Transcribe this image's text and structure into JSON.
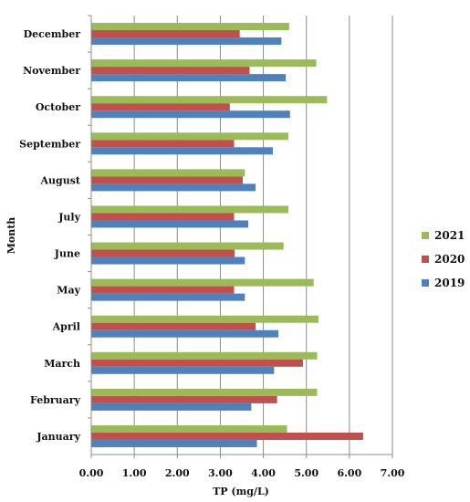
{
  "chart_data": {
    "type": "bar",
    "orientation": "horizontal",
    "title": "",
    "xlabel": "TP (mg/L)",
    "ylabel": "Month",
    "xlim": [
      0,
      7
    ],
    "x_ticks": [
      "0.00",
      "1.00",
      "2.00",
      "3.00",
      "4.00",
      "5.00",
      "6.00",
      "7.00"
    ],
    "grid": "vertical major gridlines",
    "legend_position": "right",
    "categories": [
      "January",
      "February",
      "March",
      "April",
      "May",
      "June",
      "July",
      "August",
      "September",
      "October",
      "November",
      "December"
    ],
    "series": [
      {
        "name": "2019",
        "color": "#4f81bd",
        "values": [
          3.85,
          3.72,
          4.25,
          4.35,
          3.57,
          3.57,
          3.65,
          3.82,
          4.22,
          4.62,
          4.52,
          4.42
        ]
      },
      {
        "name": "2020",
        "color": "#c0504d",
        "values": [
          6.32,
          4.32,
          4.92,
          3.82,
          3.32,
          3.33,
          3.32,
          3.52,
          3.32,
          3.22,
          3.68,
          3.45
        ]
      },
      {
        "name": "2021",
        "color": "#9bbb59",
        "values": [
          4.55,
          5.25,
          5.25,
          5.28,
          5.17,
          4.47,
          4.58,
          3.57,
          4.58,
          5.48,
          5.23,
          4.6
        ]
      }
    ],
    "legend_order": [
      "2021",
      "2020",
      "2019"
    ]
  }
}
